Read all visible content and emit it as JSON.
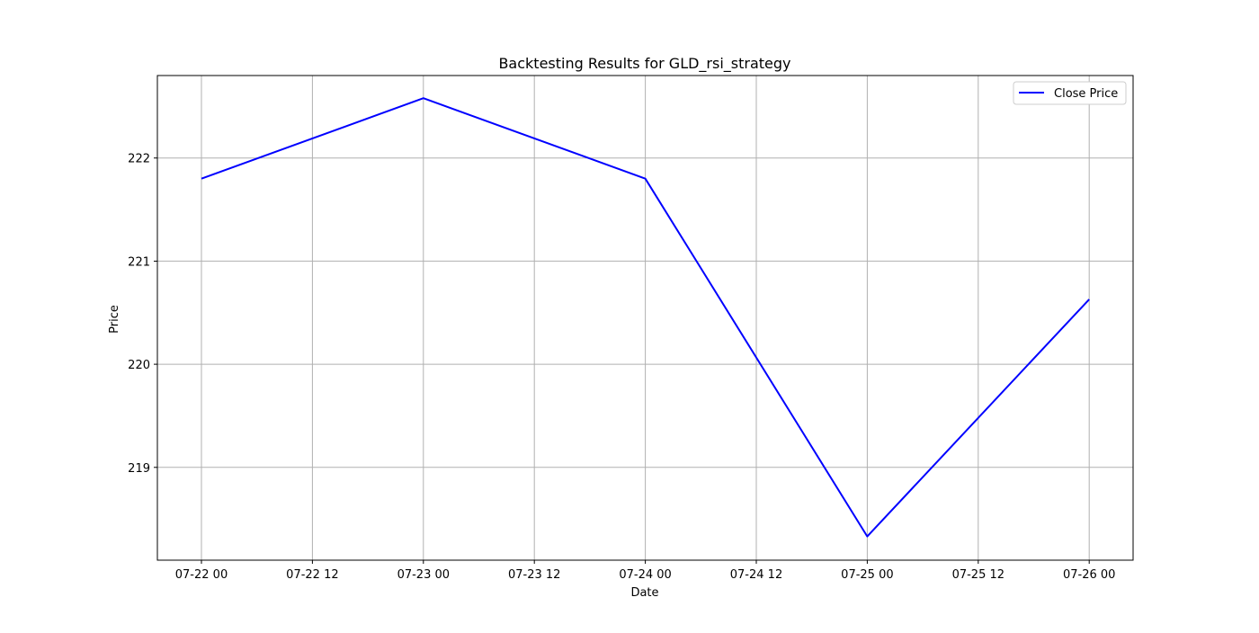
{
  "chart_data": {
    "type": "line",
    "title": "Backtesting Results for GLD_rsi_strategy",
    "xlabel": "Date",
    "ylabel": "Price",
    "x": [
      "07-22 00",
      "07-23 00",
      "07-24 00",
      "07-25 00",
      "07-26 00"
    ],
    "x_ticks": [
      "07-22 00",
      "07-22 12",
      "07-23 00",
      "07-23 12",
      "07-24 00",
      "07-24 12",
      "07-25 00",
      "07-25 12",
      "07-26 00"
    ],
    "y_ticks": [
      219,
      220,
      221,
      222
    ],
    "ylim": [
      218.1,
      222.8
    ],
    "grid": true,
    "legend_position": "top-right",
    "series": [
      {
        "name": "Close Price",
        "color": "#0000ff",
        "values": [
          221.8,
          222.58,
          221.8,
          218.33,
          220.63
        ]
      }
    ]
  }
}
